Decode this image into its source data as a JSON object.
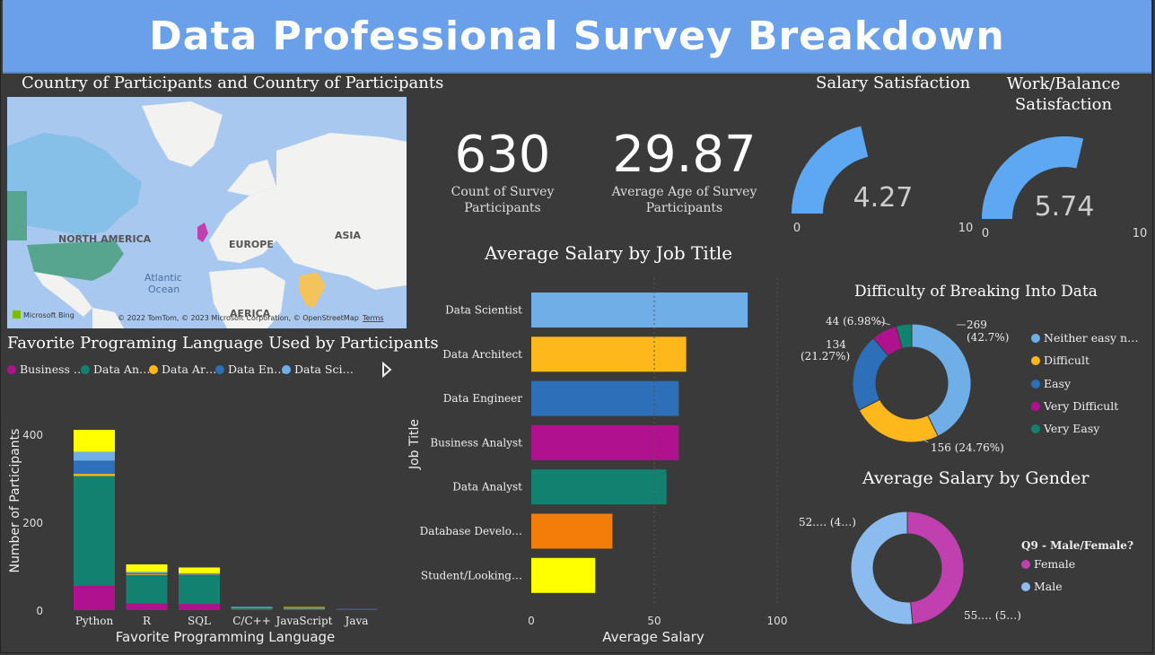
{
  "header": {
    "title": "Data Professional Survey Breakdown"
  },
  "colors": {
    "background": "#3a3a3a",
    "banner": "#6aa0ea",
    "light_blue": "#6faee6",
    "yellow": "#ffb81c",
    "blue": "#2d6fb9",
    "magenta": "#b0128f",
    "teal": "#138170",
    "orange": "#f47d09",
    "bright_yellow": "#ffff00",
    "pink": "#c040b0",
    "male_blue": "#8cbcef"
  },
  "map": {
    "title": "Country of Participants and Country of Participants",
    "labels": {
      "north_america": "NORTH AMERICA",
      "europe": "EUROPE",
      "asia": "ASIA",
      "africa": "AFRICA",
      "ocean": "Atlantic\nOcean"
    },
    "ocean_line1": "Atlantic",
    "ocean_line2": "Ocean",
    "bing": "Microsoft Bing",
    "copyright": "© 2022 TomTom, © 2023 Microsoft Corporation, © OpenStreetMap",
    "terms": "Terms"
  },
  "kpis": {
    "count_value": "630",
    "count_label": "Count of Survey Participants",
    "count_label_l1": "Count of Survey",
    "count_label_l2": "Participants",
    "age_value": "29.87",
    "age_label_l1": "Average Age of Survey",
    "age_label_l2": "Participants"
  },
  "gauges": {
    "salary": {
      "title": "Salary Satisfaction",
      "value": 4.27,
      "value_label": "4.27",
      "min": "0",
      "max": "10"
    },
    "work": {
      "title_l1": "Work/Balance",
      "title_l2": "Satisfaction",
      "value": 5.74,
      "value_label": "5.74",
      "min": "0",
      "max": "10"
    }
  },
  "stacked_bar": {
    "title": "Favorite Programing Language Used by Participants",
    "legend": [
      {
        "label": "Business …",
        "color": "#b0128f"
      },
      {
        "label": "Data An…",
        "color": "#138170"
      },
      {
        "label": "Data Ar…",
        "color": "#ffb81c"
      },
      {
        "label": "Data En…",
        "color": "#2d6fb9"
      },
      {
        "label": "Data Sci…",
        "color": "#6faee6"
      }
    ],
    "xlabel": "Favorite Programming Language",
    "ylabel": "Number of Participants",
    "yticks": [
      "0",
      "200",
      "400"
    ]
  },
  "hbar": {
    "title": "Average Salary by Job Title",
    "xlabel": "Average Salary",
    "ylabel": "Job Title",
    "xticks": [
      "0",
      "50",
      "100"
    ]
  },
  "donut_difficulty": {
    "title": "Difficulty of Breaking Into Data",
    "legend": [
      "Neither easy n…",
      "Difficult",
      "Easy",
      "Very Difficult",
      "Very Easy"
    ],
    "labels": {
      "neither_1": "269",
      "neither_2": "(42.7%)",
      "difficult": "156 (24.76%)",
      "easy_1": "134",
      "easy_2": "(21.27%)",
      "very_difficult": "44 (6.98%)"
    }
  },
  "donut_gender": {
    "title": "Average Salary by Gender",
    "legend_title": "Q9 - Male/Female?",
    "legend": [
      "Female",
      "Male"
    ],
    "label_top": "52.… (4…)",
    "label_bottom": "55.… (5…)"
  },
  "chart_data": [
    {
      "type": "bar",
      "stacked": true,
      "title": "Favorite Programing Language Used by Participants",
      "xlabel": "Favorite Programming Language",
      "ylabel": "Number of Participants",
      "categories": [
        "Python",
        "R",
        "SQL",
        "C/C++",
        "JavaScript",
        "Java"
      ],
      "ylim": [
        0,
        430
      ],
      "series": [
        {
          "name": "Business …",
          "color": "#b0128f",
          "values": [
            55,
            15,
            14,
            1,
            1,
            1
          ]
        },
        {
          "name": "Data An…",
          "color": "#138170",
          "values": [
            250,
            65,
            66,
            3,
            2,
            1
          ]
        },
        {
          "name": "Data Ar…",
          "color": "#ffb81c",
          "values": [
            5,
            2,
            1,
            1,
            1,
            0
          ]
        },
        {
          "name": "Data En…",
          "color": "#2d6fb9",
          "values": [
            30,
            2,
            1,
            2,
            1,
            1
          ]
        },
        {
          "name": "Data Sci…",
          "color": "#6faee6",
          "values": [
            20,
            3,
            2,
            1,
            1,
            0
          ]
        },
        {
          "name": "",
          "color": "#ffff00",
          "values": [
            50,
            17,
            13,
            0,
            1,
            0
          ]
        }
      ]
    },
    {
      "type": "bar",
      "orientation": "horizontal",
      "title": "Average Salary by Job Title",
      "xlabel": "Average Salary",
      "ylabel": "Job Title",
      "xlim": [
        0,
        100
      ],
      "categories": [
        "Data Scientist",
        "Data Architect",
        "Data Engineer",
        "Business Analyst",
        "Data Analyst",
        "Database Develo…",
        "Student/Looking…"
      ],
      "values": [
        88,
        63,
        60,
        60,
        55,
        33,
        26
      ],
      "colors": [
        "#6faee6",
        "#ffb81c",
        "#2d6fb9",
        "#b0128f",
        "#138170",
        "#f47d09",
        "#ffff00"
      ]
    },
    {
      "type": "pie",
      "donut": true,
      "title": "Difficulty of Breaking Into Data",
      "categories": [
        "Neither easy n…",
        "Difficult",
        "Easy",
        "Very Difficult",
        "Very Easy"
      ],
      "values": [
        269,
        156,
        134,
        44,
        27
      ],
      "colors": [
        "#6faee6",
        "#ffb81c",
        "#2d6fb9",
        "#b0128f",
        "#138170"
      ]
    },
    {
      "type": "pie",
      "donut": true,
      "title": "Average Salary by Gender",
      "categories": [
        "Female",
        "Male"
      ],
      "values": [
        48.5,
        51.5
      ],
      "colors": [
        "#c040b0",
        "#8cbcef"
      ]
    }
  ]
}
